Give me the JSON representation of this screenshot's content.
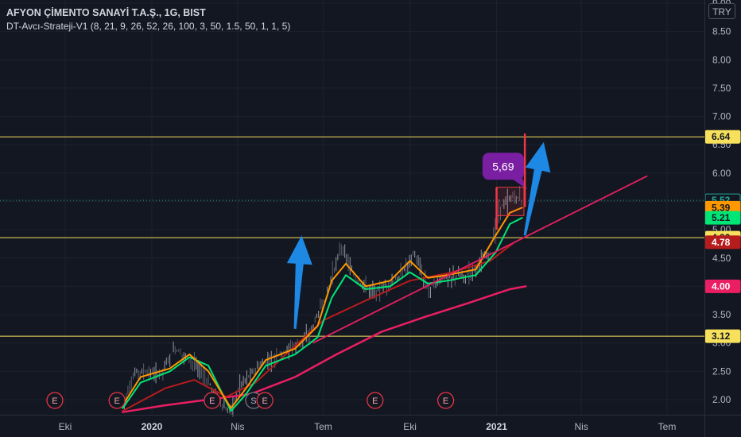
{
  "header": {
    "symbol": "AFYON ÇİMENTO SANAYİ T.A.Ş., 1G, BIST",
    "indicator": "DT-Avcı-Strateji-V1 (8, 21, 9, 26, 52, 26, 100, 3, 50, 1.5, 50, 1, 1, 5)",
    "currency": "TRY"
  },
  "colors": {
    "background": "#131722",
    "axis_text": "#b2b5be",
    "yellow_line": "#f7e05b",
    "trend_line": "#e91e63",
    "sma_line": "#e91e63",
    "ema_fast": "#ff9800",
    "ema_mid": "#00e676",
    "ema_slow": "#b71c1c",
    "arrow": "#1e88e5",
    "callout": "#7b1fa2",
    "earnings": "#f23645"
  },
  "chart_data": {
    "type": "line",
    "title": "AFYON ÇİMENTO SANAYİ T.A.Ş., 1G, BIST",
    "y_axis": {
      "position": "right",
      "ticks": [
        "9.00",
        "8.50",
        "8.00",
        "7.50",
        "7.00",
        "6.50",
        "6.00",
        "5.50",
        "5.00",
        "4.50",
        "4.00",
        "3.50",
        "3.00",
        "2.50",
        "2.00"
      ],
      "range": [
        1.8,
        9.0
      ]
    },
    "x_axis": {
      "ticks": [
        "Eki",
        "2020",
        "Nis",
        "Tem",
        "Eki",
        "2021",
        "Nis",
        "Tem"
      ],
      "bold_ticks": [
        "2020",
        "2021"
      ],
      "range": [
        "2019-09-01",
        "2021-07-31"
      ]
    },
    "horizontal_levels": [
      6.64,
      4.86,
      3.12
    ],
    "price_labels": [
      {
        "value": "6.64",
        "price": 6.64,
        "color": "#f7e05b",
        "text_color": "#131722"
      },
      {
        "value": "5.52",
        "price": 5.52,
        "color": "#131722",
        "text_color": "#26a69a",
        "border": "#26a69a"
      },
      {
        "value": "5.39",
        "price": 5.39,
        "color": "#ff9800",
        "text_color": "#131722"
      },
      {
        "value": "5.21",
        "price": 5.21,
        "color": "#00e676",
        "text_color": "#131722"
      },
      {
        "value": "4.86",
        "price": 4.86,
        "color": "#f7e05b",
        "text_color": "#131722"
      },
      {
        "value": "4.78",
        "price": 4.78,
        "color": "#b71c1c",
        "text_color": "#ffffff"
      },
      {
        "value": "4.00",
        "price": 4.0,
        "color": "#e91e63",
        "text_color": "#ffffff"
      },
      {
        "value": "3.12",
        "price": 3.12,
        "color": "#f7e05b",
        "text_color": "#131722"
      }
    ],
    "current_price": 5.52,
    "series": [
      {
        "name": "SMA",
        "color": "#e91e63",
        "points": [
          [
            "2019-12-01",
            1.78
          ],
          [
            "2020-01-15",
            1.9
          ],
          [
            "2020-03-01",
            2.0
          ],
          [
            "2020-04-15",
            2.1
          ],
          [
            "2020-06-01",
            2.4
          ],
          [
            "2020-07-15",
            2.8
          ],
          [
            "2020-09-01",
            3.2
          ],
          [
            "2020-10-15",
            3.45
          ],
          [
            "2020-12-01",
            3.7
          ],
          [
            "2021-01-15",
            3.95
          ],
          [
            "2021-02-01",
            4.0
          ]
        ]
      },
      {
        "name": "EMA slow",
        "color": "#b71c1c",
        "points": [
          [
            "2019-12-01",
            1.8
          ],
          [
            "2020-01-15",
            2.2
          ],
          [
            "2020-02-15",
            2.35
          ],
          [
            "2020-03-20",
            2.05
          ],
          [
            "2020-04-20",
            2.3
          ],
          [
            "2020-06-01",
            2.95
          ],
          [
            "2020-07-01",
            3.4
          ],
          [
            "2020-08-15",
            3.75
          ],
          [
            "2020-10-01",
            4.1
          ],
          [
            "2020-11-15",
            4.25
          ],
          [
            "2020-12-25",
            4.45
          ],
          [
            "2021-01-20",
            4.78
          ]
        ]
      },
      {
        "name": "EMA mid",
        "color": "#00e676",
        "points": [
          [
            "2019-12-01",
            1.85
          ],
          [
            "2019-12-20",
            2.3
          ],
          [
            "2020-01-20",
            2.5
          ],
          [
            "2020-02-10",
            2.75
          ],
          [
            "2020-03-01",
            2.6
          ],
          [
            "2020-03-25",
            1.8
          ],
          [
            "2020-04-10",
            2.1
          ],
          [
            "2020-05-01",
            2.6
          ],
          [
            "2020-06-01",
            2.8
          ],
          [
            "2020-06-25",
            3.1
          ],
          [
            "2020-07-10",
            3.8
          ],
          [
            "2020-07-25",
            4.2
          ],
          [
            "2020-08-15",
            3.95
          ],
          [
            "2020-09-10",
            4.0
          ],
          [
            "2020-10-01",
            4.25
          ],
          [
            "2020-10-20",
            4.05
          ],
          [
            "2020-11-10",
            4.1
          ],
          [
            "2020-12-10",
            4.2
          ],
          [
            "2020-12-31",
            4.6
          ],
          [
            "2021-01-15",
            5.1
          ],
          [
            "2021-01-28",
            5.21
          ]
        ]
      },
      {
        "name": "EMA fast",
        "color": "#ff9800",
        "points": [
          [
            "2019-12-01",
            1.9
          ],
          [
            "2019-12-20",
            2.4
          ],
          [
            "2020-01-20",
            2.55
          ],
          [
            "2020-02-10",
            2.8
          ],
          [
            "2020-03-01",
            2.5
          ],
          [
            "2020-03-25",
            1.85
          ],
          [
            "2020-04-10",
            2.2
          ],
          [
            "2020-05-01",
            2.7
          ],
          [
            "2020-06-01",
            2.9
          ],
          [
            "2020-06-25",
            3.3
          ],
          [
            "2020-07-10",
            4.1
          ],
          [
            "2020-07-25",
            4.4
          ],
          [
            "2020-08-15",
            4.0
          ],
          [
            "2020-09-10",
            4.1
          ],
          [
            "2020-10-01",
            4.45
          ],
          [
            "2020-10-20",
            4.15
          ],
          [
            "2020-11-10",
            4.2
          ],
          [
            "2020-12-10",
            4.3
          ],
          [
            "2020-12-31",
            4.9
          ],
          [
            "2021-01-15",
            5.3
          ],
          [
            "2021-01-28",
            5.39
          ]
        ]
      },
      {
        "name": "Price",
        "color": "#b2b5be",
        "points": [
          [
            "2019-12-01",
            1.9
          ],
          [
            "2019-12-15",
            2.5
          ],
          [
            "2020-01-10",
            2.45
          ],
          [
            "2020-01-25",
            2.9
          ],
          [
            "2020-02-15",
            2.65
          ],
          [
            "2020-03-05",
            2.2
          ],
          [
            "2020-03-22",
            1.75
          ],
          [
            "2020-04-05",
            2.3
          ],
          [
            "2020-04-25",
            2.6
          ],
          [
            "2020-05-20",
            2.85
          ],
          [
            "2020-06-15",
            3.1
          ],
          [
            "2020-07-05",
            3.9
          ],
          [
            "2020-07-20",
            4.7
          ],
          [
            "2020-08-05",
            4.1
          ],
          [
            "2020-08-25",
            3.9
          ],
          [
            "2020-09-20",
            4.15
          ],
          [
            "2020-10-05",
            4.6
          ],
          [
            "2020-10-20",
            3.95
          ],
          [
            "2020-11-05",
            4.15
          ],
          [
            "2020-12-01",
            4.2
          ],
          [
            "2020-12-25",
            4.6
          ],
          [
            "2021-01-05",
            5.4
          ],
          [
            "2021-01-20",
            5.6
          ],
          [
            "2021-01-28",
            5.52
          ]
        ]
      }
    ],
    "trendlines": [
      {
        "name": "support-trend",
        "color": "#e91e63",
        "points": [
          [
            "2020-06-20",
            3.0
          ],
          [
            "2021-06-10",
            5.95
          ]
        ]
      }
    ],
    "annotations": [
      {
        "type": "callout",
        "text": "5,69",
        "color": "#7b1fa2",
        "date": "2021-01-08",
        "price": 6.12
      },
      {
        "type": "box",
        "from": [
          "2021-01-01",
          5.75
        ],
        "to": [
          "2021-01-30",
          5.25
        ],
        "color": "#f23645"
      },
      {
        "type": "vertical-line",
        "date": "2021-01-31",
        "from": 5.4,
        "to": 6.7,
        "color": "#f23645"
      },
      {
        "type": "arrow",
        "from": [
          "2020-06-01",
          3.25
        ],
        "to": [
          "2020-06-08",
          4.9
        ],
        "color": "#1e88e5"
      },
      {
        "type": "arrow",
        "from": [
          "2021-01-31",
          4.9
        ],
        "to": [
          "2021-02-20",
          6.55
        ],
        "color": "#1e88e5"
      }
    ],
    "events": [
      {
        "label": "E",
        "date": "2019-09-20"
      },
      {
        "label": "E",
        "date": "2019-11-25"
      },
      {
        "label": "E",
        "date": "2020-03-05"
      },
      {
        "label": "S",
        "date": "2020-04-18"
      },
      {
        "label": "E",
        "date": "2020-04-30"
      },
      {
        "label": "E",
        "date": "2020-08-25"
      },
      {
        "label": "E",
        "date": "2020-11-08"
      }
    ],
    "grid": true,
    "legend": "top-left"
  }
}
